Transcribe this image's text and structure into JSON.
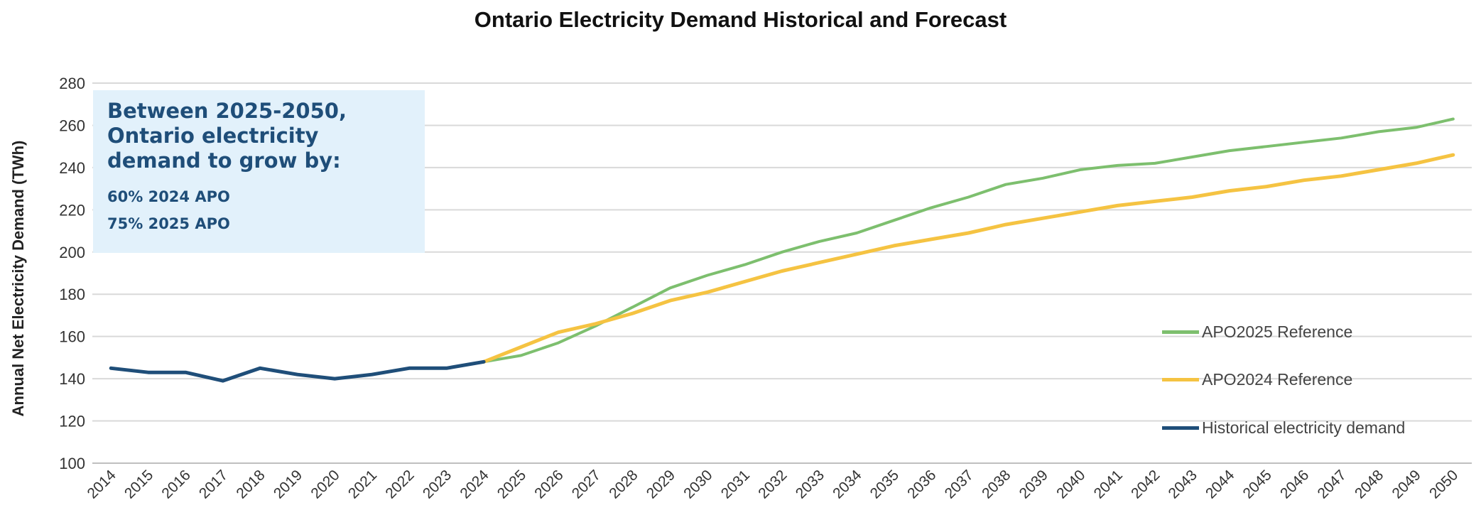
{
  "chart_data": {
    "type": "line",
    "title": "Ontario Electricity Demand Historical and Forecast",
    "xlabel": "",
    "ylabel": "Annual Net Electricity Demand (TWh)",
    "ylim": [
      100,
      280
    ],
    "yticks": [
      "100",
      "120",
      "140",
      "160",
      "180",
      "200",
      "220",
      "240",
      "260",
      "280"
    ],
    "categories": [
      "2014",
      "2015",
      "2016",
      "2017",
      "2018",
      "2019",
      "2020",
      "2021",
      "2022",
      "2023",
      "2024",
      "2025",
      "2026",
      "2027",
      "2028",
      "2029",
      "2030",
      "2031",
      "2032",
      "2033",
      "2034",
      "2035",
      "2036",
      "2037",
      "2038",
      "2039",
      "2040",
      "2041",
      "2042",
      "2043",
      "2044",
      "2045",
      "2046",
      "2047",
      "2048",
      "2049",
      "2050"
    ],
    "grid": true,
    "legend_position": "right",
    "series": [
      {
        "name": "APO2025 Reference",
        "color": "#7dbf6e",
        "x": [
          "2024",
          "2025",
          "2026",
          "2027",
          "2028",
          "2029",
          "2030",
          "2031",
          "2032",
          "2033",
          "2034",
          "2035",
          "2036",
          "2037",
          "2038",
          "2039",
          "2040",
          "2041",
          "2042",
          "2043",
          "2044",
          "2045",
          "2046",
          "2047",
          "2048",
          "2049",
          "2050"
        ],
        "values": [
          148,
          151,
          157,
          165,
          174,
          183,
          189,
          194,
          200,
          205,
          209,
          215,
          221,
          226,
          232,
          235,
          239,
          241,
          242,
          245,
          248,
          250,
          252,
          254,
          257,
          259,
          263
        ]
      },
      {
        "name": "APO2024 Reference",
        "color": "#f5c342",
        "x": [
          "2024",
          "2025",
          "2026",
          "2027",
          "2028",
          "2029",
          "2030",
          "2031",
          "2032",
          "2033",
          "2034",
          "2035",
          "2036",
          "2037",
          "2038",
          "2039",
          "2040",
          "2041",
          "2042",
          "2043",
          "2044",
          "2045",
          "2046",
          "2047",
          "2048",
          "2049",
          "2050"
        ],
        "values": [
          148,
          155,
          162,
          166,
          171,
          177,
          181,
          186,
          191,
          195,
          199,
          203,
          206,
          209,
          213,
          216,
          219,
          222,
          224,
          226,
          229,
          231,
          234,
          236,
          239,
          242,
          246
        ]
      },
      {
        "name": "Historical electricity demand",
        "color": "#1f4e79",
        "x": [
          "2014",
          "2015",
          "2016",
          "2017",
          "2018",
          "2019",
          "2020",
          "2021",
          "2022",
          "2023",
          "2024"
        ],
        "values": [
          145,
          143,
          143,
          139,
          145,
          142,
          140,
          142,
          145,
          145,
          148
        ]
      }
    ],
    "annotation": {
      "heading": "Between 2025-2050, Ontario electricity demand to grow by:",
      "lines": [
        "60% 2024 APO",
        "75% 2025 APO"
      ],
      "background": "#e2f1fb",
      "text_color": "#1f4e79"
    }
  }
}
